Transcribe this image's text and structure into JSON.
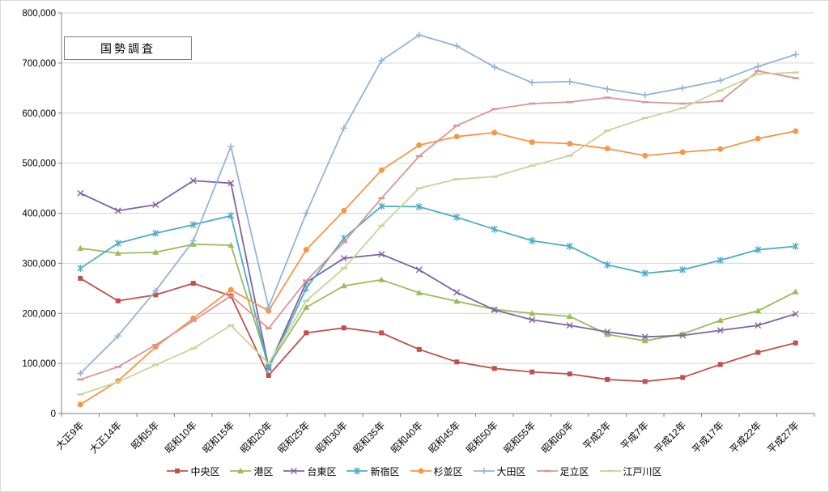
{
  "chart_data": {
    "type": "line",
    "title": "国勢調査",
    "xlabel": "",
    "ylabel": "",
    "ylim": [
      0,
      800000
    ],
    "grid": true,
    "legend_position": "bottom",
    "y_ticks": [
      "0",
      "100,000",
      "200,000",
      "300,000",
      "400,000",
      "500,000",
      "600,000",
      "700,000",
      "800,000"
    ],
    "categories": [
      "大正9年",
      "大正14年",
      "昭和5年",
      "昭和10年",
      "昭和15年",
      "昭和20年",
      "昭和25年",
      "昭和30年",
      "昭和35年",
      "昭和40年",
      "昭和45年",
      "昭和50年",
      "昭和55年",
      "昭和60年",
      "平成2年",
      "平成7年",
      "平成12年",
      "平成17年",
      "平成22年",
      "平成27年"
    ],
    "series": [
      {
        "name": "中央区",
        "color": "#C0504D",
        "marker": "square",
        "values": [
          270000,
          225000,
          237000,
          260000,
          235000,
          76000,
          161000,
          171000,
          161000,
          128000,
          103000,
          90000,
          83000,
          79000,
          68000,
          64000,
          72000,
          98000,
          122000,
          141000
        ]
      },
      {
        "name": "港区",
        "color": "#9BBB59",
        "marker": "triangle",
        "values": [
          330000,
          320000,
          322000,
          338000,
          336000,
          96000,
          212000,
          255000,
          267000,
          241000,
          224000,
          208000,
          200000,
          194000,
          158000,
          145000,
          159000,
          186000,
          205000,
          243000
        ]
      },
      {
        "name": "台東区",
        "color": "#8064A2",
        "marker": "x",
        "values": [
          440000,
          405000,
          417000,
          465000,
          460000,
          93000,
          262000,
          310000,
          318000,
          287000,
          242000,
          207000,
          187000,
          176000,
          163000,
          153000,
          156000,
          166000,
          176000,
          199000
        ]
      },
      {
        "name": "新宿区",
        "color": "#4BACC6",
        "marker": "asterisk",
        "values": [
          290000,
          340000,
          360000,
          377000,
          395000,
          90000,
          250000,
          350000,
          414000,
          413000,
          392000,
          368000,
          345000,
          334000,
          297000,
          280000,
          287000,
          306000,
          327000,
          334000
        ]
      },
      {
        "name": "杉並区",
        "color": "#F79646",
        "marker": "circle",
        "values": [
          18000,
          65000,
          133000,
          190000,
          247000,
          205000,
          327000,
          405000,
          486000,
          536000,
          553000,
          561000,
          542000,
          539000,
          529000,
          515000,
          522000,
          528000,
          549000,
          564000
        ]
      },
      {
        "name": "大田区",
        "color": "#95B3D7",
        "marker": "plus",
        "values": [
          80000,
          155000,
          245000,
          345000,
          533000,
          212000,
          400000,
          570000,
          705000,
          756000,
          734000,
          692000,
          661000,
          663000,
          648000,
          636000,
          650000,
          665000,
          693000,
          717000
        ]
      },
      {
        "name": "足立区",
        "color": "#D99694",
        "marker": "dash",
        "values": [
          68000,
          93000,
          137000,
          185000,
          235000,
          170000,
          265000,
          342000,
          430000,
          514000,
          575000,
          608000,
          619000,
          622000,
          631000,
          622000,
          619000,
          624000,
          684000,
          670000
        ]
      },
      {
        "name": "江戸川区",
        "color": "#C3D69B",
        "marker": "dash",
        "values": [
          38000,
          63000,
          97000,
          130000,
          176000,
          100000,
          225000,
          290000,
          375000,
          450000,
          468000,
          473000,
          495000,
          515000,
          565000,
          590000,
          610000,
          645000,
          678000,
          681000
        ]
      }
    ]
  }
}
